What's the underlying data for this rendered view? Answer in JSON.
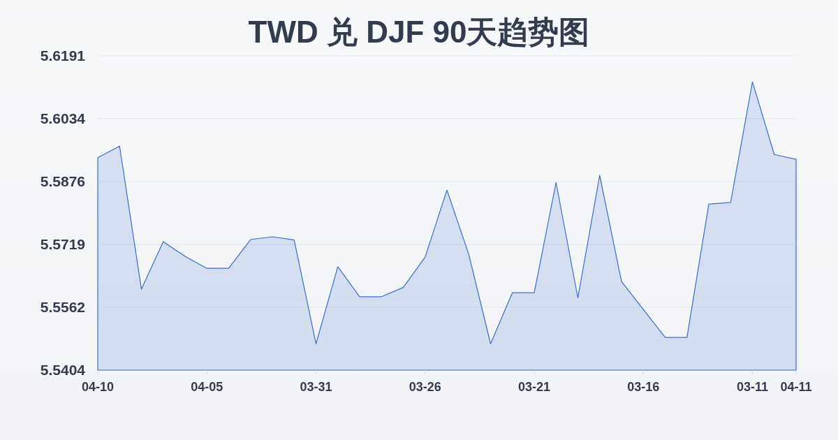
{
  "chart_data": {
    "type": "area",
    "title": "TWD 兑 DJF 90天趋势图",
    "categories": [
      "04-10",
      null,
      null,
      null,
      null,
      "04-05",
      null,
      null,
      null,
      null,
      "03-31",
      null,
      null,
      null,
      null,
      "03-26",
      null,
      null,
      null,
      null,
      "03-21",
      null,
      null,
      null,
      null,
      "03-16",
      null,
      null,
      null,
      null,
      "03-11",
      null,
      "04-11"
    ],
    "series": [
      {
        "color": "#3a6bd1",
        "values": [
          5.5936,
          5.5965,
          5.5607,
          5.5726,
          5.5689,
          5.5659,
          5.5659,
          5.5731,
          5.5738,
          5.573,
          5.547,
          5.5663,
          5.5588,
          5.5588,
          5.5611,
          5.5687,
          5.5855,
          5.5694,
          5.547,
          5.5598,
          5.5598,
          5.5874,
          5.5585,
          5.5892,
          5.5626,
          5.5556,
          5.5486,
          5.5486,
          5.582,
          5.5824,
          5.6126,
          5.5944,
          5.5932
        ]
      }
    ],
    "ylim": [
      5.5404,
      5.6191
    ],
    "yticks": [
      5.5404,
      5.5562,
      5.5719,
      5.5876,
      5.6034,
      5.6191
    ],
    "grid": "y"
  }
}
